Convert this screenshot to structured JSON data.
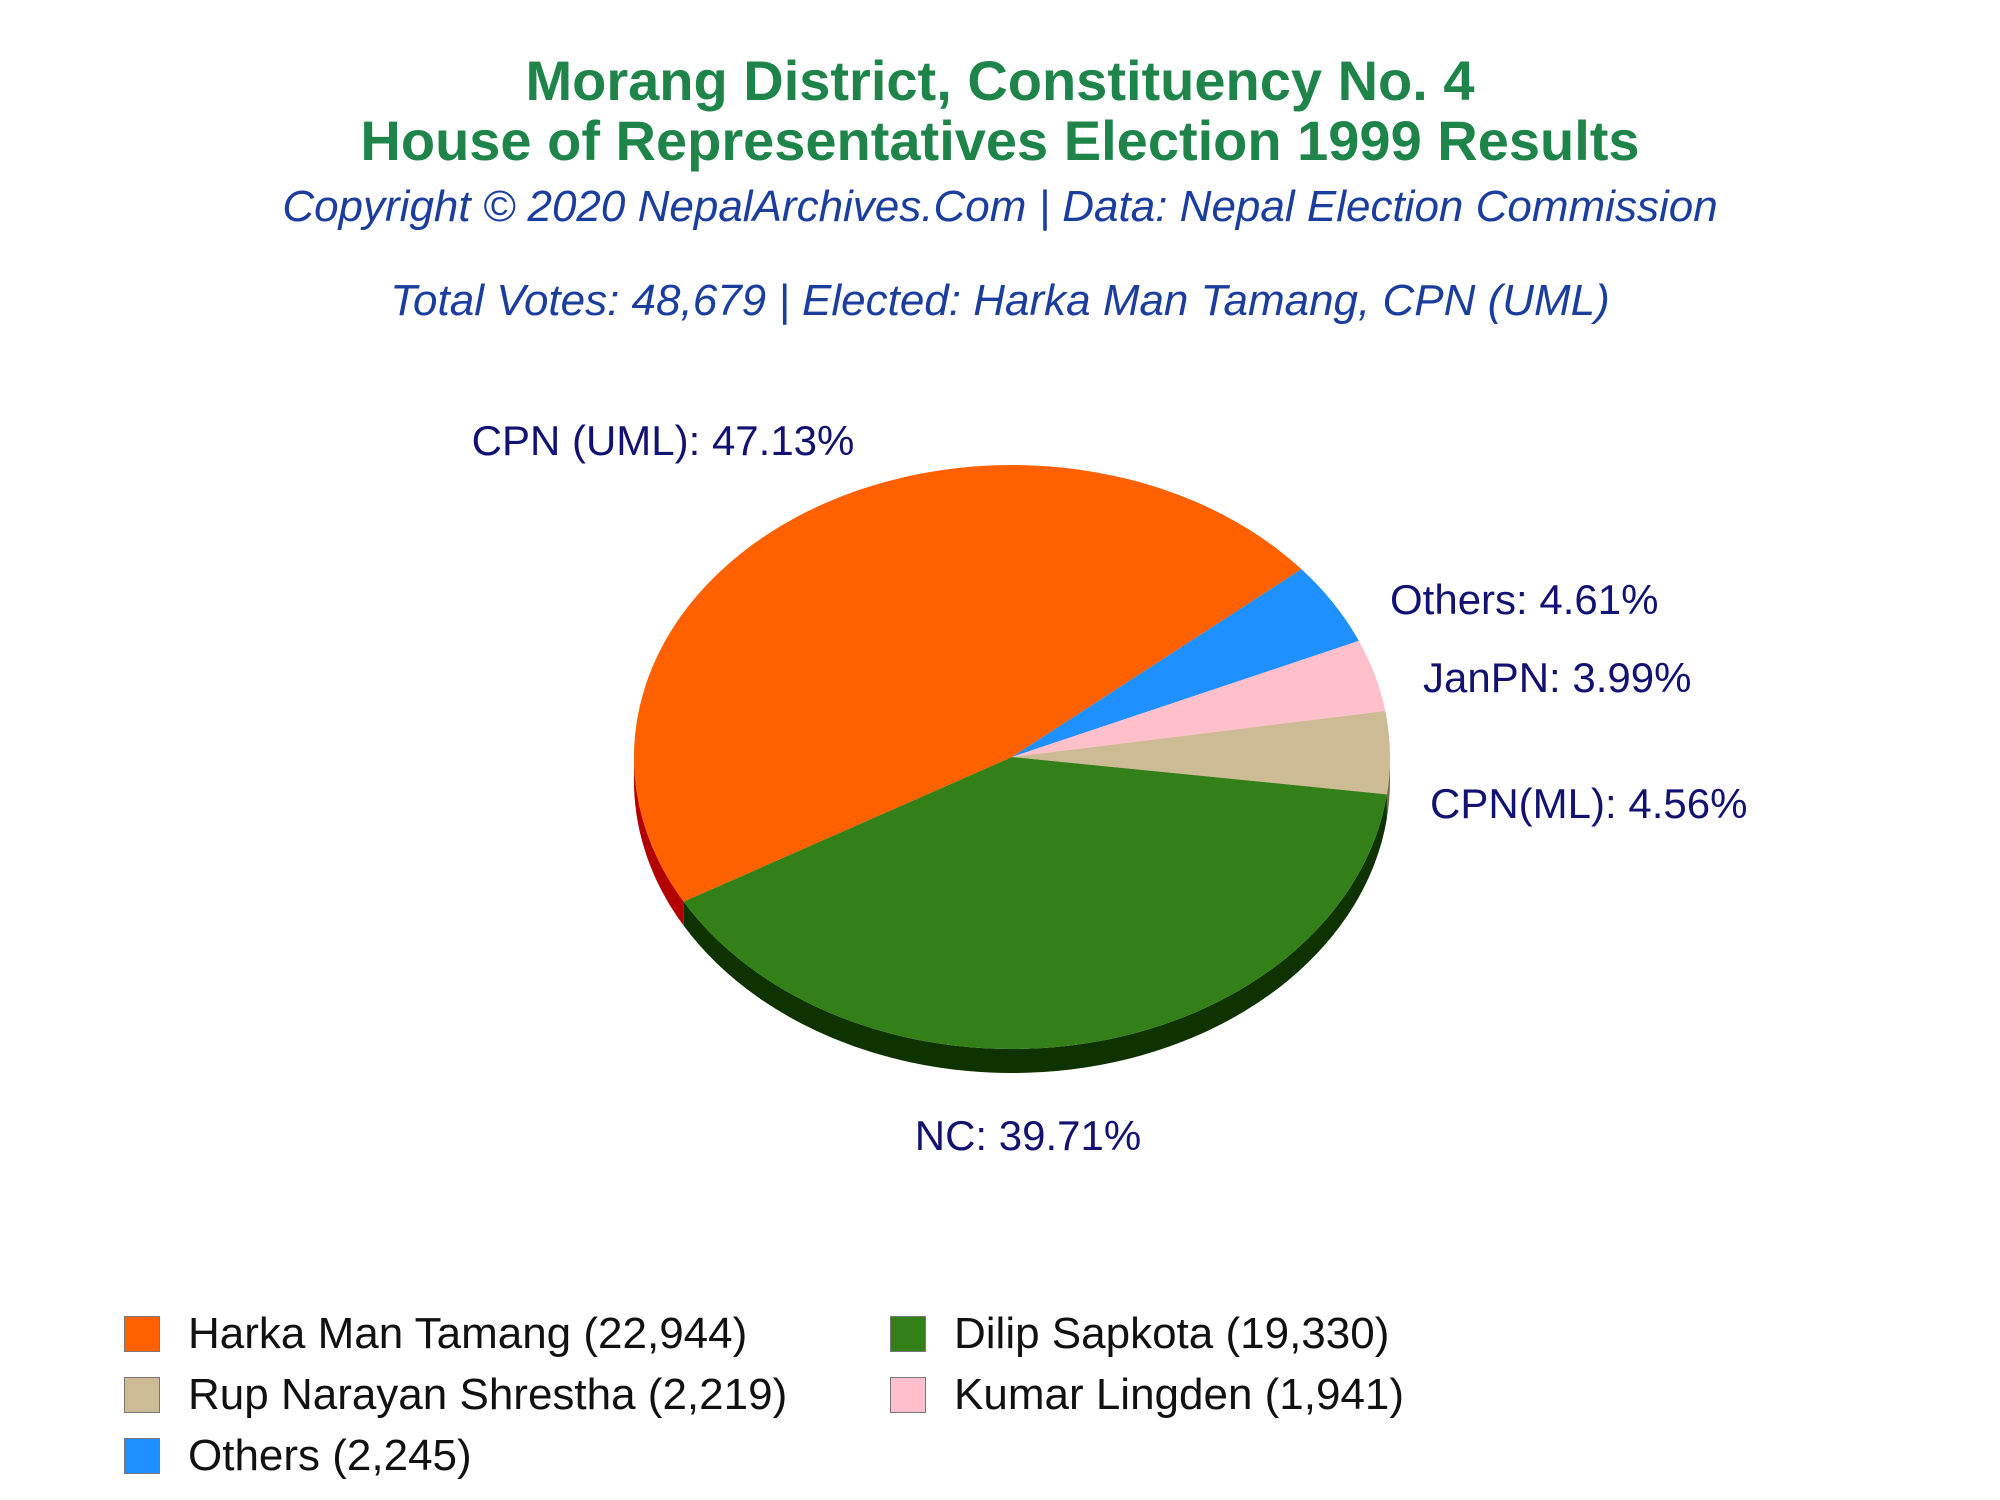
{
  "header": {
    "title_line1": "Morang District, Constituency No. 4",
    "title_line2": "House of Representatives Election 1999 Results",
    "copyright": "Copyright © 2020 NepalArchives.Com | Data: Nepal Election Commission",
    "summary": "Total Votes: 48,679 | Elected: Harka Man Tamang, CPN (UML)"
  },
  "chart_data": {
    "type": "pie",
    "slices": [
      {
        "party": "CPN (UML)",
        "label": "CPN (UML): 47.13%",
        "percent": 47.13,
        "color": "#ff6000",
        "side_color": "#b30000"
      },
      {
        "party": "Others",
        "label": "Others: 4.61%",
        "percent": 4.61,
        "color": "#1e90ff",
        "side_color": "#0a4d99"
      },
      {
        "party": "JanPN",
        "label": "JanPN: 3.99%",
        "percent": 3.99,
        "color": "#ffc0cb",
        "side_color": "#b78a92"
      },
      {
        "party": "CPN(ML)",
        "label": "CPN(ML): 4.56%",
        "percent": 4.56,
        "color": "#cdbb95",
        "side_color": "#7d6a45"
      },
      {
        "party": "NC",
        "label": "NC: 39.71%",
        "percent": 39.71,
        "color": "#328017",
        "side_color": "#0f3300"
      }
    ],
    "legend": [
      {
        "label": "Harka Man Tamang (22,944)",
        "votes": 22944,
        "color": "#ff6000"
      },
      {
        "label": "Dilip Sapkota (19,330)",
        "votes": 19330,
        "color": "#328017"
      },
      {
        "label": "Rup Narayan Shrestha (2,219)",
        "votes": 2219,
        "color": "#cdbb95"
      },
      {
        "label": "Kumar Lingden (1,941)",
        "votes": 1941,
        "color": "#ffc0cb"
      },
      {
        "label": "Others (2,245)",
        "votes": 2245,
        "color": "#1e90ff"
      }
    ]
  }
}
